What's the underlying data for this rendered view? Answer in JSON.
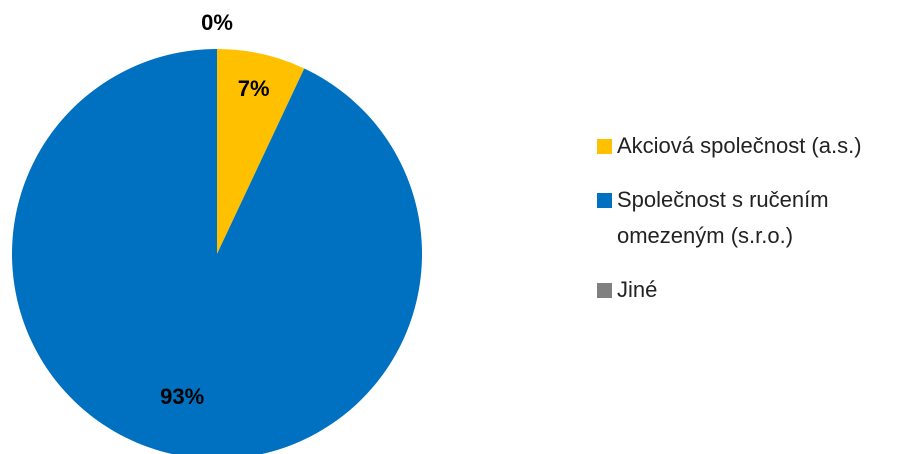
{
  "chart_data": {
    "type": "pie",
    "categories": [
      "Akciová společnost (a.s.)",
      "Společnost s ručením omezeným (s.r.o.)",
      "Jiné"
    ],
    "values": [
      7,
      93,
      0
    ],
    "value_labels": [
      "7%",
      "93%",
      "0%"
    ],
    "colors": [
      "#ffc000",
      "#0070c0",
      "#808080"
    ],
    "legend": "right"
  }
}
